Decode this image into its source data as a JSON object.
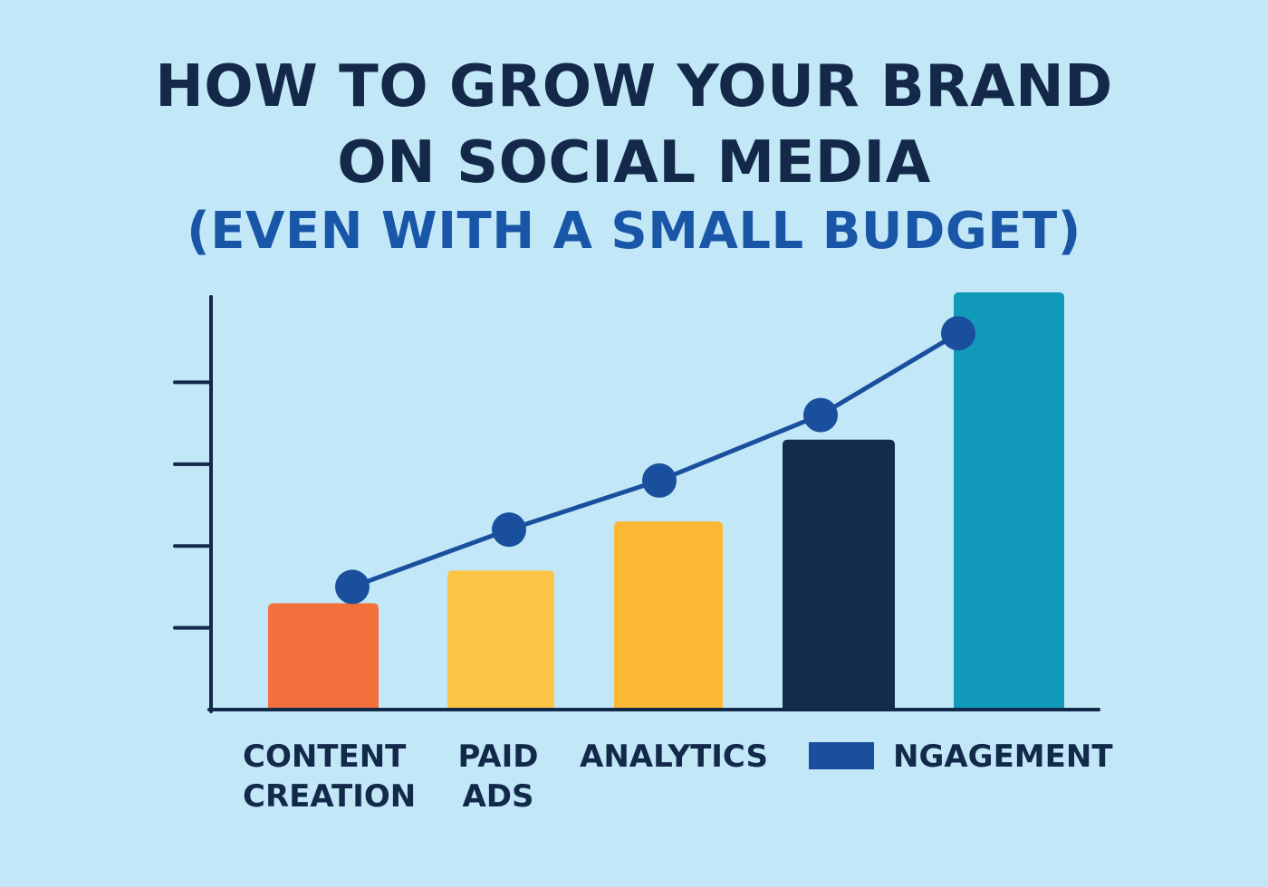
{
  "chart_data": {
    "type": "bar",
    "title": [
      "HOW TO GROW YOUR BRAND",
      "ON SOCIAL MEDIA"
    ],
    "subtitle": "(EVEN WITH A SMALL BUDGET)",
    "categories": [
      [
        "CONTENT",
        "CREATION"
      ],
      [
        "PAID",
        "ADS"
      ],
      [
        "ANALYTICS"
      ],
      [],
      []
    ],
    "values": [
      1.3,
      1.7,
      2.3,
      3.3,
      5.1
    ],
    "bar_colors": [
      "#f2703c",
      "#fbc445",
      "#fbb834",
      "#142b4a",
      "#129abb"
    ],
    "line_series": {
      "values": [
        1.5,
        2.2,
        2.8,
        3.6,
        4.6
      ],
      "color": "#1a4f9e"
    },
    "legend": [
      {
        "label": "NGAGEMENT",
        "color": "#1a4f9e"
      }
    ],
    "ylim": [
      0,
      5.1
    ],
    "y_ticks": [
      1,
      2,
      3,
      4
    ],
    "y_tick_labels": false,
    "grid": false,
    "legend_position": "bottom-right"
  }
}
